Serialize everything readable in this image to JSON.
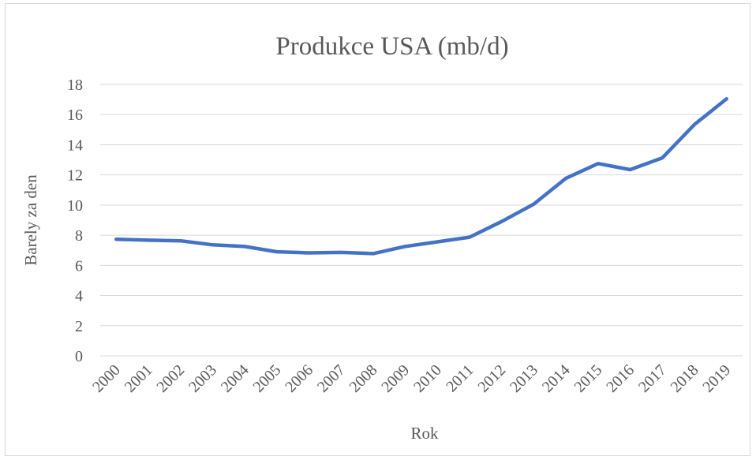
{
  "chart_data": {
    "type": "line",
    "title": "Produkce USA (mb/d)",
    "xlabel": "Rok",
    "ylabel": "Barely za den",
    "categories": [
      "2000",
      "2001",
      "2002",
      "2003",
      "2004",
      "2005",
      "2006",
      "2007",
      "2008",
      "2009",
      "2010",
      "2011",
      "2012",
      "2013",
      "2014",
      "2015",
      "2016",
      "2017",
      "2018",
      "2019"
    ],
    "series": [
      {
        "values": [
          7.73,
          7.67,
          7.63,
          7.36,
          7.25,
          6.9,
          6.83,
          6.86,
          6.78,
          7.26,
          7.56,
          7.87,
          8.91,
          10.07,
          11.78,
          12.75,
          12.35,
          13.13,
          15.34,
          17.04
        ]
      }
    ],
    "ylim": [
      0,
      18
    ],
    "yticks": [
      0,
      2,
      4,
      6,
      8,
      10,
      12,
      14,
      16,
      18
    ],
    "grid": true,
    "legend": "none",
    "colors": {
      "line": "#4472c4",
      "grid": "#d9d9d9",
      "text": "#595959"
    }
  }
}
